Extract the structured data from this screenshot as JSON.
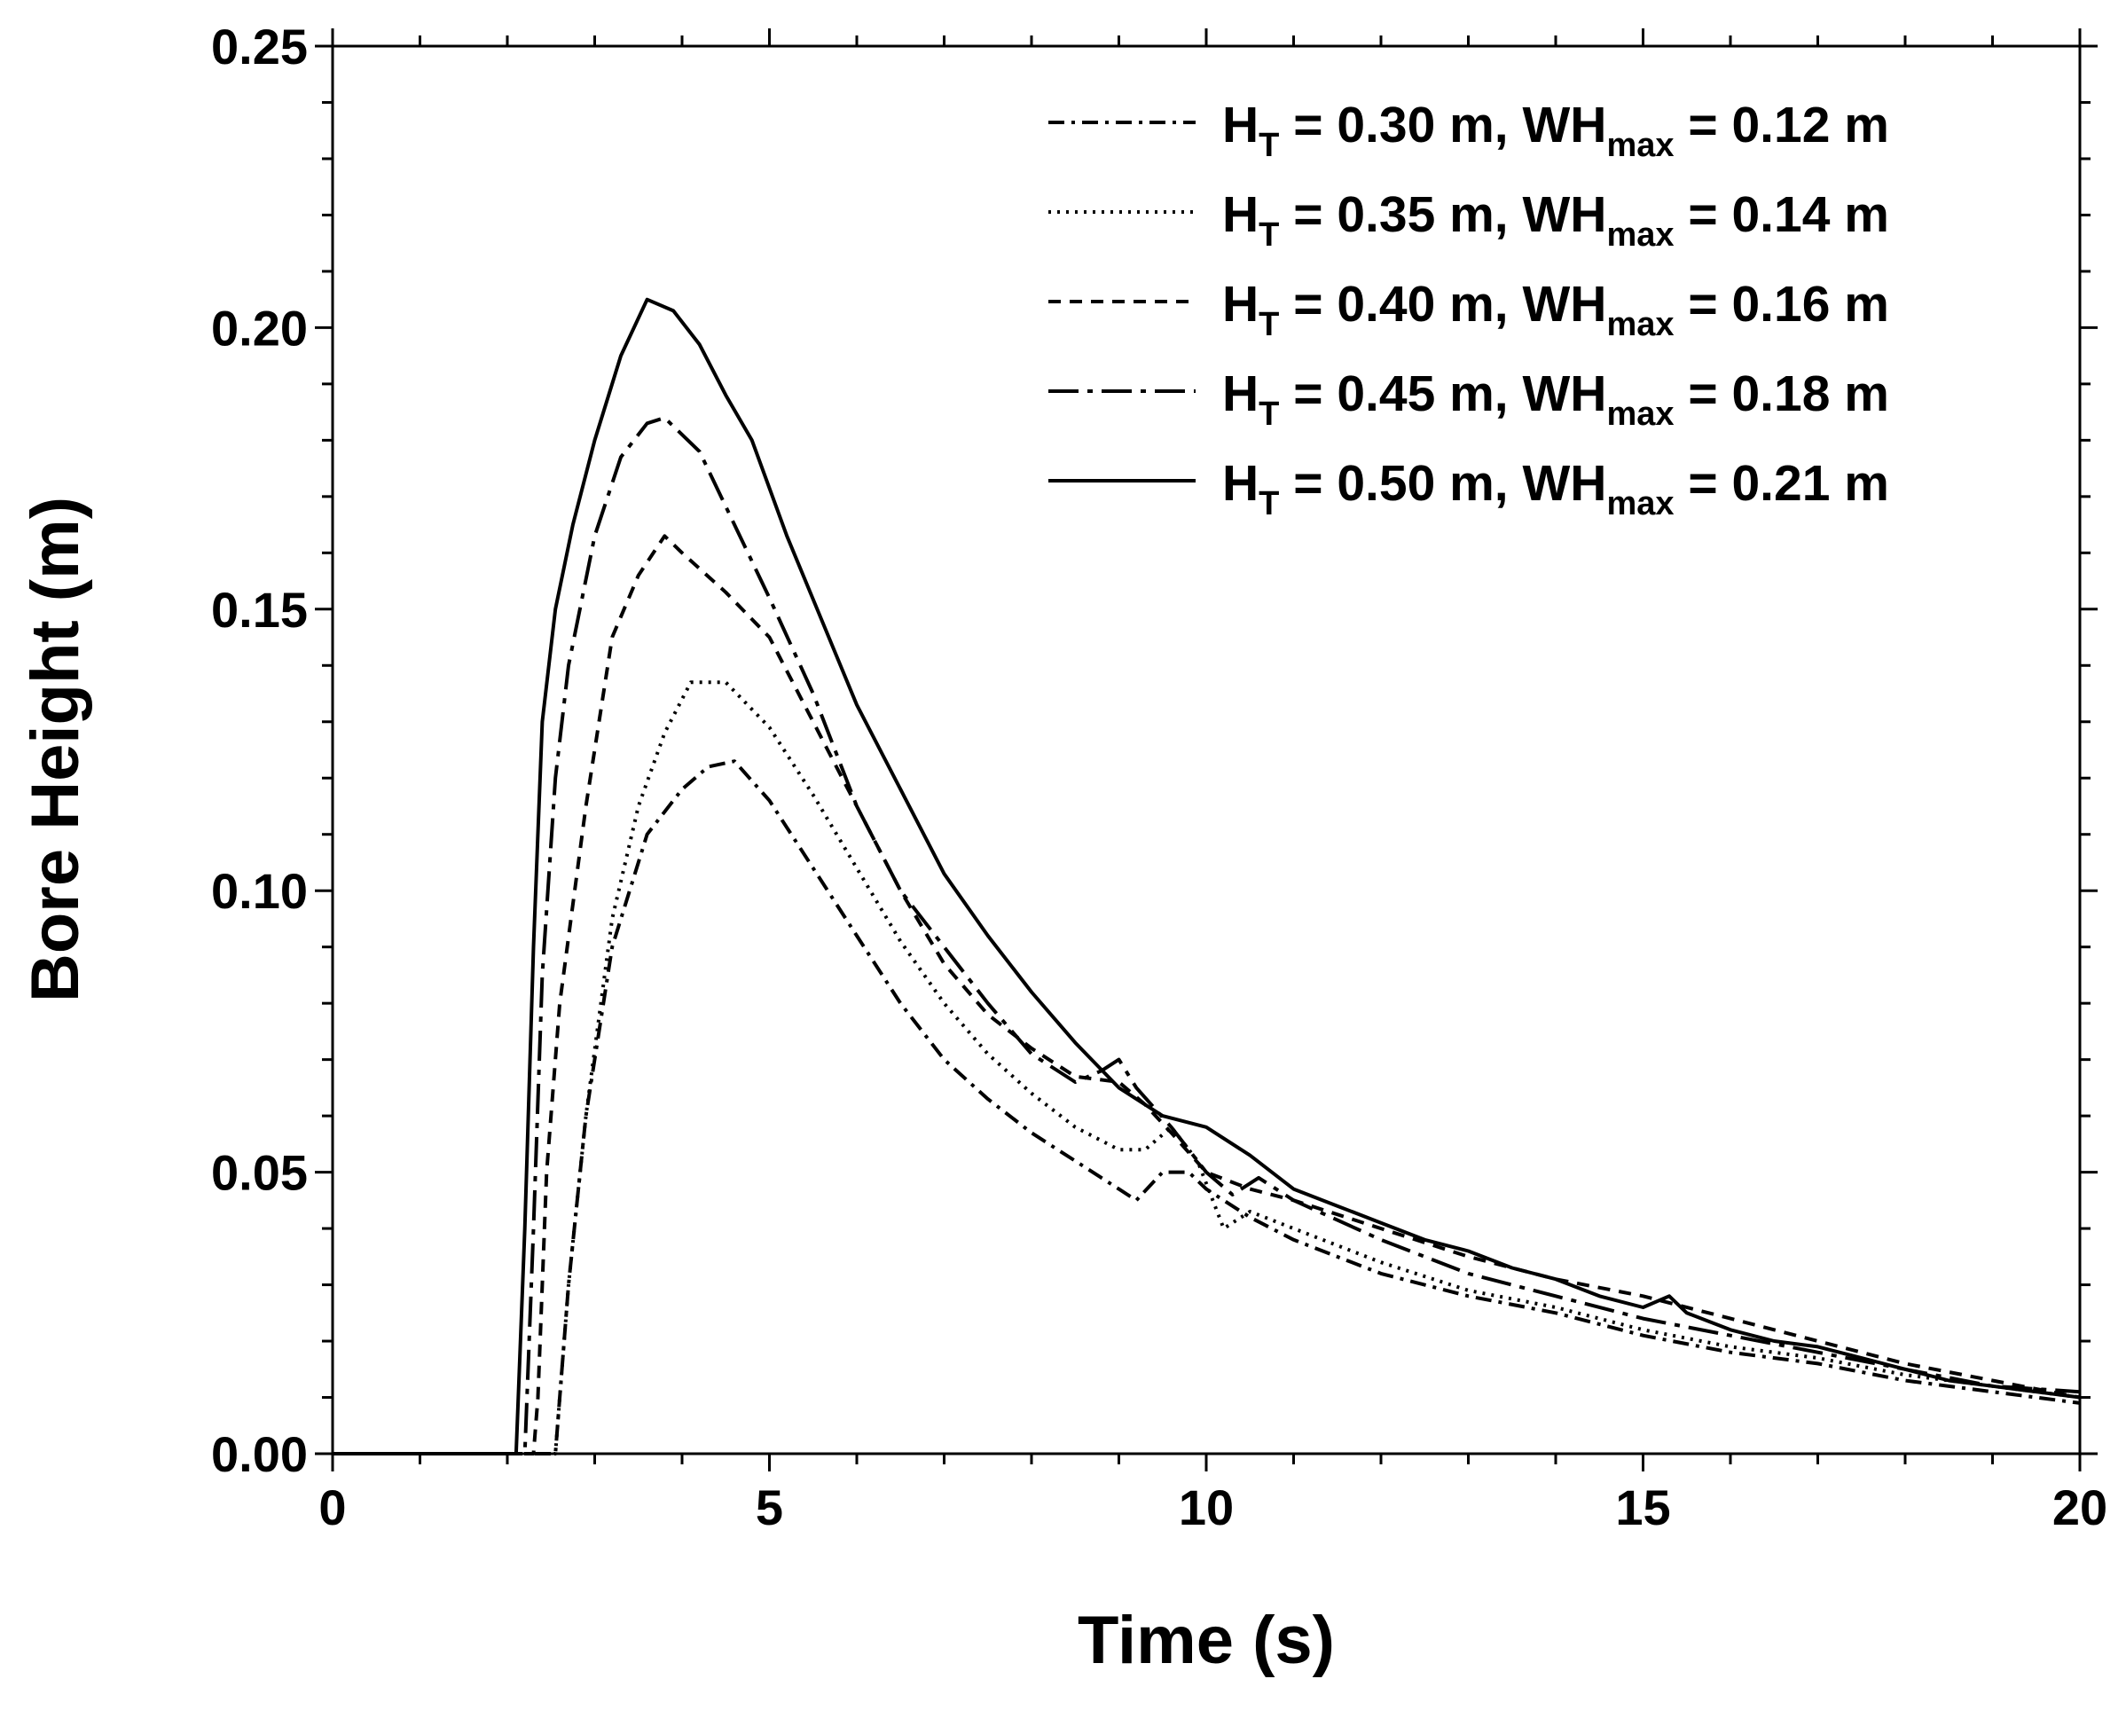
{
  "chart_data": {
    "type": "line",
    "title": "",
    "xlabel": "Time (s)",
    "ylabel": "Bore Height (m)",
    "xlim": [
      0,
      20
    ],
    "ylim": [
      0,
      0.25
    ],
    "xticks": [
      0,
      5,
      10,
      15,
      20
    ],
    "xtick_labels": [
      "0",
      "5",
      "10",
      "15",
      "20"
    ],
    "yticks": [
      0,
      0.05,
      0.1,
      0.15,
      0.2,
      0.25
    ],
    "ytick_labels": [
      "0.00",
      "0.05",
      "0.10",
      "0.15",
      "0.20",
      "0.25"
    ],
    "grid": false,
    "legend_position": "top-right",
    "series": [
      {
        "name": "HT = 0.30 m, WHmax = 0.12 m",
        "legend": {
          "h_label": "H",
          "h_sub": "T",
          "h_val": " = 0.30 m, ",
          "wh_label": "WH",
          "wh_sub": "max",
          "wh_val": " = 0.12 m"
        },
        "dash": "dashdot",
        "x": [
          0,
          2.55,
          2.6,
          2.7,
          2.9,
          3.2,
          3.6,
          4.0,
          4.3,
          4.6,
          5.0,
          5.5,
          6.0,
          6.5,
          7.0,
          7.5,
          8.0,
          8.5,
          9.0,
          9.2,
          9.5,
          9.8,
          10.0,
          10.5,
          11.0,
          12.0,
          13.0,
          14.0,
          15.0,
          16.0,
          17.0,
          18.0,
          19.0,
          20.0
        ],
        "values": [
          0,
          0,
          0.01,
          0.03,
          0.06,
          0.09,
          0.11,
          0.118,
          0.122,
          0.123,
          0.116,
          0.104,
          0.092,
          0.08,
          0.07,
          0.063,
          0.057,
          0.052,
          0.047,
          0.045,
          0.05,
          0.05,
          0.047,
          0.042,
          0.038,
          0.032,
          0.028,
          0.025,
          0.021,
          0.018,
          0.016,
          0.013,
          0.011,
          0.009
        ]
      },
      {
        "name": "HT = 0.35 m, WHmax = 0.14 m",
        "legend": {
          "h_label": "H",
          "h_sub": "T",
          "h_val": " = 0.35 m, ",
          "wh_label": "WH",
          "wh_sub": "max",
          "wh_val": " = 0.14 m"
        },
        "dash": "dotted",
        "x": [
          0,
          2.55,
          2.6,
          2.7,
          2.9,
          3.2,
          3.5,
          3.8,
          4.1,
          4.5,
          5.0,
          5.5,
          6.0,
          6.5,
          7.0,
          7.5,
          8.0,
          8.5,
          9.0,
          9.3,
          9.6,
          9.9,
          10.2,
          10.5,
          11.0,
          12.0,
          13.0,
          14.0,
          15.0,
          16.0,
          17.0,
          18.0,
          19.0,
          20.0
        ],
        "values": [
          0,
          0,
          0.01,
          0.03,
          0.06,
          0.095,
          0.115,
          0.128,
          0.137,
          0.137,
          0.129,
          0.117,
          0.104,
          0.091,
          0.08,
          0.071,
          0.064,
          0.058,
          0.054,
          0.054,
          0.058,
          0.052,
          0.04,
          0.043,
          0.04,
          0.034,
          0.029,
          0.026,
          0.022,
          0.019,
          0.017,
          0.014,
          0.012,
          0.01
        ]
      },
      {
        "name": "HT = 0.40 m, WHmax = 0.16 m",
        "legend": {
          "h_label": "H",
          "h_sub": "T",
          "h_val": " = 0.40 m, ",
          "wh_label": "WH",
          "wh_sub": "max",
          "wh_val": " = 0.16 m"
        },
        "dash": "dashed",
        "x": [
          0,
          2.3,
          2.35,
          2.45,
          2.6,
          2.9,
          3.2,
          3.5,
          3.8,
          4.0,
          4.5,
          5.0,
          5.5,
          6.0,
          6.5,
          7.0,
          7.5,
          8.0,
          8.5,
          9.0,
          9.3,
          9.6,
          10.0,
          10.5,
          11.0,
          12.0,
          13.0,
          14.0,
          15.0,
          16.0,
          17.0,
          18.0,
          19.0,
          20.0
        ],
        "values": [
          0,
          0,
          0.01,
          0.05,
          0.08,
          0.115,
          0.145,
          0.156,
          0.163,
          0.16,
          0.153,
          0.145,
          0.13,
          0.115,
          0.1,
          0.087,
          0.078,
          0.072,
          0.067,
          0.066,
          0.062,
          0.057,
          0.05,
          0.047,
          0.045,
          0.04,
          0.035,
          0.031,
          0.028,
          0.024,
          0.02,
          0.016,
          0.013,
          0.01
        ]
      },
      {
        "name": "HT = 0.45 m, WHmax = 0.18 m",
        "legend": {
          "h_label": "H",
          "h_sub": "T",
          "h_val": " = 0.45 m, ",
          "wh_label": "WH",
          "wh_sub": "max",
          "wh_val": " = 0.18 m"
        },
        "dash": "dashdot-long",
        "x": [
          0,
          2.2,
          2.3,
          2.4,
          2.55,
          2.7,
          3.0,
          3.3,
          3.6,
          3.8,
          4.2,
          4.6,
          5.0,
          5.5,
          6.0,
          6.5,
          7.0,
          7.5,
          8.0,
          8.5,
          8.8,
          9.0,
          9.2,
          9.6,
          10.0,
          10.3,
          10.6,
          11.0,
          12.0,
          13.0,
          14.0,
          15.0,
          16.0,
          17.0,
          18.0,
          19.0,
          20.0
        ],
        "values": [
          0,
          0,
          0.04,
          0.085,
          0.12,
          0.14,
          0.163,
          0.177,
          0.183,
          0.184,
          0.178,
          0.165,
          0.152,
          0.135,
          0.115,
          0.1,
          0.09,
          0.08,
          0.071,
          0.066,
          0.068,
          0.07,
          0.065,
          0.058,
          0.05,
          0.046,
          0.049,
          0.045,
          0.038,
          0.032,
          0.028,
          0.024,
          0.021,
          0.018,
          0.015,
          0.012,
          0.011
        ]
      },
      {
        "name": "HT = 0.50 m, WHmax = 0.21 m",
        "legend": {
          "h_label": "H",
          "h_sub": "T",
          "h_val": " = 0.50 m, ",
          "wh_label": "WH",
          "wh_sub": "max",
          "wh_val": " = 0.21 m"
        },
        "dash": "solid",
        "x": [
          0,
          2.1,
          2.2,
          2.3,
          2.4,
          2.55,
          2.75,
          3.0,
          3.3,
          3.6,
          3.9,
          4.2,
          4.5,
          4.8,
          5.2,
          5.6,
          6.0,
          6.5,
          7.0,
          7.5,
          8.0,
          8.5,
          9.0,
          9.5,
          10.0,
          10.5,
          11.0,
          11.5,
          12.0,
          12.5,
          13.0,
          13.5,
          14.0,
          14.5,
          15.0,
          15.3,
          15.5,
          16.0,
          16.5,
          17.0,
          17.5,
          18.0,
          18.5,
          19.0,
          19.5,
          20.0
        ],
        "values": [
          0,
          0,
          0.04,
          0.09,
          0.13,
          0.15,
          0.165,
          0.18,
          0.195,
          0.205,
          0.203,
          0.197,
          0.188,
          0.18,
          0.163,
          0.148,
          0.133,
          0.118,
          0.103,
          0.092,
          0.082,
          0.073,
          0.065,
          0.06,
          0.058,
          0.053,
          0.047,
          0.044,
          0.041,
          0.038,
          0.036,
          0.033,
          0.031,
          0.028,
          0.026,
          0.028,
          0.025,
          0.022,
          0.02,
          0.019,
          0.017,
          0.015,
          0.013,
          0.012,
          0.011,
          0.01
        ]
      }
    ]
  }
}
